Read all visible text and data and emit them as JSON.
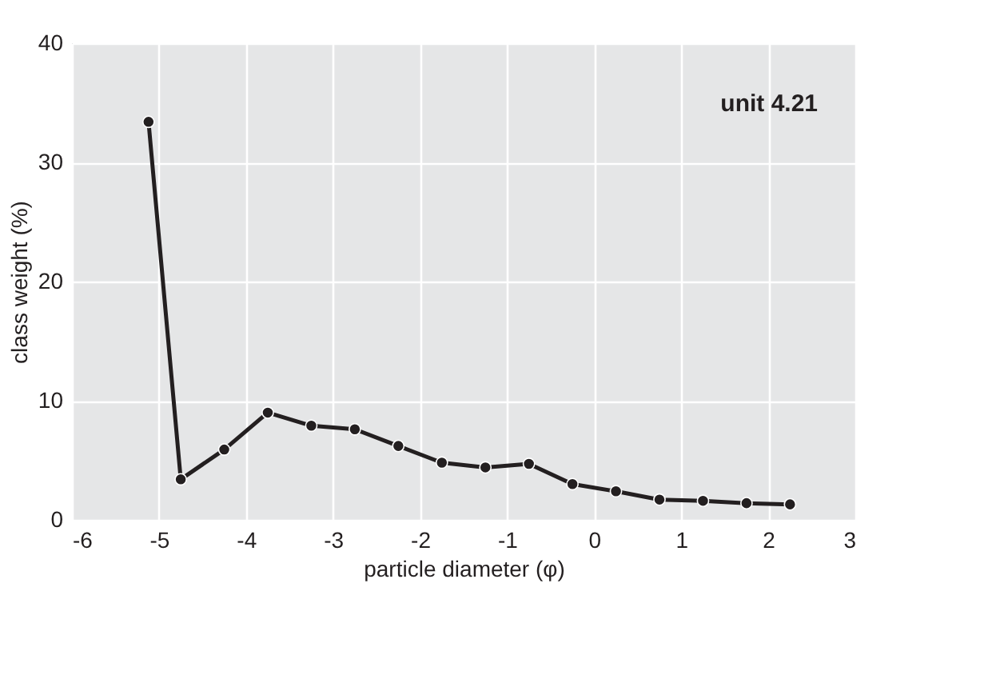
{
  "chart_data": {
    "type": "line",
    "xlabel": "particle diameter (φ)",
    "ylabel": "class weight (%)",
    "annotations": [
      "unit 4.21"
    ],
    "x": [
      -5.12,
      -4.75,
      -4.25,
      -3.75,
      -3.25,
      -2.75,
      -2.25,
      -1.75,
      -1.25,
      -0.75,
      -0.25,
      0.25,
      0.75,
      1.25,
      1.75,
      2.25
    ],
    "series": [
      {
        "color": "#231f20",
        "values": [
          33.4,
          3.4,
          5.9,
          9.0,
          7.9,
          7.6,
          6.2,
          4.8,
          4.4,
          4.7,
          3.0,
          2.4,
          1.7,
          1.6,
          1.4,
          1.3
        ]
      }
    ],
    "xlim": [
      -6,
      3
    ],
    "xticks": [
      -6,
      -5,
      -4,
      -3,
      -2,
      -1,
      0,
      1,
      2,
      3
    ],
    "ylim": [
      0,
      40
    ],
    "yticks": [
      0,
      10,
      20,
      30,
      40
    ],
    "grid": true,
    "marker": "circle",
    "line_style": "solid",
    "legend": false
  }
}
